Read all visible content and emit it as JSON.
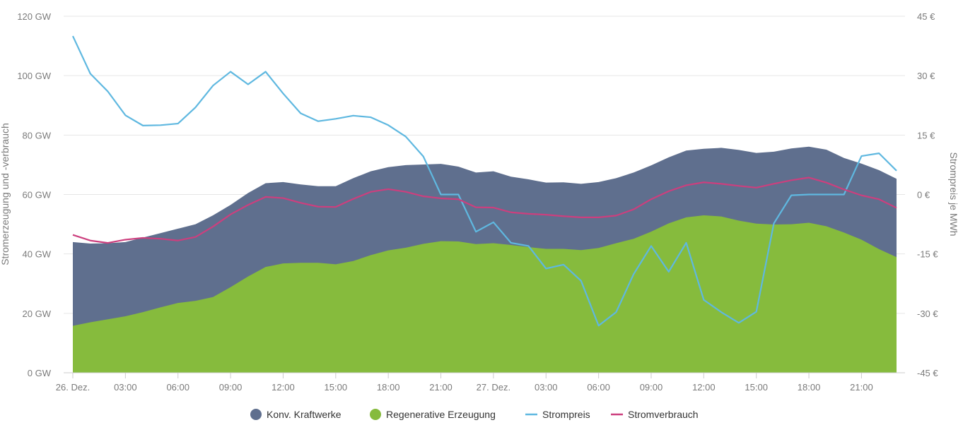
{
  "chart_data": {
    "type": "area",
    "title": "",
    "ylabel_left": "Stromerzeugung und -verbrauch",
    "ylabel_right": "Strompreis je MWh",
    "y_left": {
      "min": 0,
      "max": 120,
      "ticks": [
        0,
        20,
        40,
        60,
        80,
        100,
        120
      ],
      "unit": " GW"
    },
    "y_right": {
      "min": -45,
      "max": 45,
      "ticks": [
        -45,
        -30,
        -15,
        0,
        15,
        30,
        45
      ],
      "unit": " €"
    },
    "x_hours": {
      "min": 0,
      "max": 47
    },
    "x_ticks": [
      {
        "h": 0,
        "label": "26. Dez."
      },
      {
        "h": 3,
        "label": "03:00"
      },
      {
        "h": 6,
        "label": "06:00"
      },
      {
        "h": 9,
        "label": "09:00"
      },
      {
        "h": 12,
        "label": "12:00"
      },
      {
        "h": 15,
        "label": "15:00"
      },
      {
        "h": 18,
        "label": "18:00"
      },
      {
        "h": 21,
        "label": "21:00"
      },
      {
        "h": 24,
        "label": "27. Dez."
      },
      {
        "h": 27,
        "label": "03:00"
      },
      {
        "h": 30,
        "label": "06:00"
      },
      {
        "h": 33,
        "label": "09:00"
      },
      {
        "h": 36,
        "label": "12:00"
      },
      {
        "h": 39,
        "label": "15:00"
      },
      {
        "h": 42,
        "label": "18:00"
      },
      {
        "h": 45,
        "label": "21:00"
      }
    ],
    "series": [
      {
        "name": "Konv. Kraftwerke",
        "kind": "area-stacked-total",
        "axis": "left",
        "color": "#5f6f8e",
        "values": [
          44,
          43.5,
          43.6,
          44,
          45.5,
          47,
          48.5,
          50,
          53,
          56.5,
          60.5,
          63.8,
          64.2,
          63.4,
          62.8,
          62.8,
          65.5,
          67.8,
          69.2,
          69.9,
          70.1,
          70.3,
          69.4,
          67.4,
          67.8,
          66.0,
          65.1,
          64.0,
          64.1,
          63.6,
          64.2,
          65.5,
          67.4,
          69.8,
          72.5,
          74.8,
          75.4,
          75.7,
          75.0,
          74.0,
          74.4,
          75.5,
          76.1,
          75.1,
          72.3,
          70.4,
          68.2,
          65.3
        ]
      },
      {
        "name": "Regenerative Erzeugung",
        "kind": "area",
        "axis": "left",
        "color": "#86bb3d",
        "values": [
          15.8,
          17,
          18,
          19,
          20.4,
          22,
          23.5,
          24.2,
          25.5,
          28.8,
          32.4,
          35.6,
          36.8,
          37.0,
          37.0,
          36.5,
          37.6,
          39.6,
          41.2,
          42.1,
          43.4,
          44.3,
          44.2,
          43.3,
          43.6,
          43.0,
          42.3,
          41.7,
          41.7,
          41.3,
          42.0,
          43.6,
          45.1,
          47.5,
          50.3,
          52.3,
          53.0,
          52.6,
          51.2,
          50.2,
          49.9,
          50.0,
          50.5,
          49.3,
          47.2,
          44.8,
          41.6,
          38.9
        ]
      },
      {
        "name": "Strompreis",
        "kind": "line",
        "axis": "right",
        "color": "#5fb8e0",
        "values": [
          40,
          30.5,
          26,
          20,
          17.4,
          17.5,
          17.9,
          22,
          27.5,
          31,
          27.8,
          31,
          25.5,
          20.5,
          18.5,
          19.1,
          19.9,
          19.5,
          17.5,
          14.6,
          9.6,
          0,
          0,
          -9.4,
          -7,
          -12.2,
          -13,
          -18.7,
          -17.7,
          -21.8,
          -33.1,
          -29.7,
          -20.1,
          -13,
          -19.5,
          -12.2,
          -26.6,
          -29.7,
          -32.4,
          -29.6,
          -7.3,
          -0.2,
          0,
          0,
          0,
          9.7,
          10.4,
          6
        ]
      },
      {
        "name": "Stromverbrauch",
        "kind": "line",
        "axis": "left",
        "color": "#cc3f7e",
        "values": [
          46.4,
          44.5,
          43.7,
          44.8,
          45.4,
          45.1,
          44.5,
          45.7,
          49.2,
          53.3,
          56.5,
          59.2,
          58.8,
          57.2,
          55.9,
          55.8,
          58.5,
          60.9,
          61.8,
          60.9,
          59.4,
          58.7,
          58.4,
          55.7,
          55.6,
          54.0,
          53.5,
          53.2,
          52.7,
          52.3,
          52.3,
          52.9,
          55.0,
          58.4,
          61.1,
          63.1,
          64.1,
          63.6,
          62.9,
          62.3,
          63.6,
          64.8,
          65.7,
          64.0,
          61.7,
          59.7,
          58.4,
          55.5
        ]
      }
    ],
    "legend": [
      {
        "label": "Konv. Kraftwerke",
        "marker": "circle",
        "color": "#5f6f8e"
      },
      {
        "label": "Regenerative Erzeugung",
        "marker": "circle",
        "color": "#86bb3d"
      },
      {
        "label": "Strompreis",
        "marker": "line",
        "color": "#5fb8e0"
      },
      {
        "label": "Stromverbrauch",
        "marker": "line",
        "color": "#cc3f7e"
      }
    ],
    "legend_position": "bottom-center",
    "grid": true
  }
}
